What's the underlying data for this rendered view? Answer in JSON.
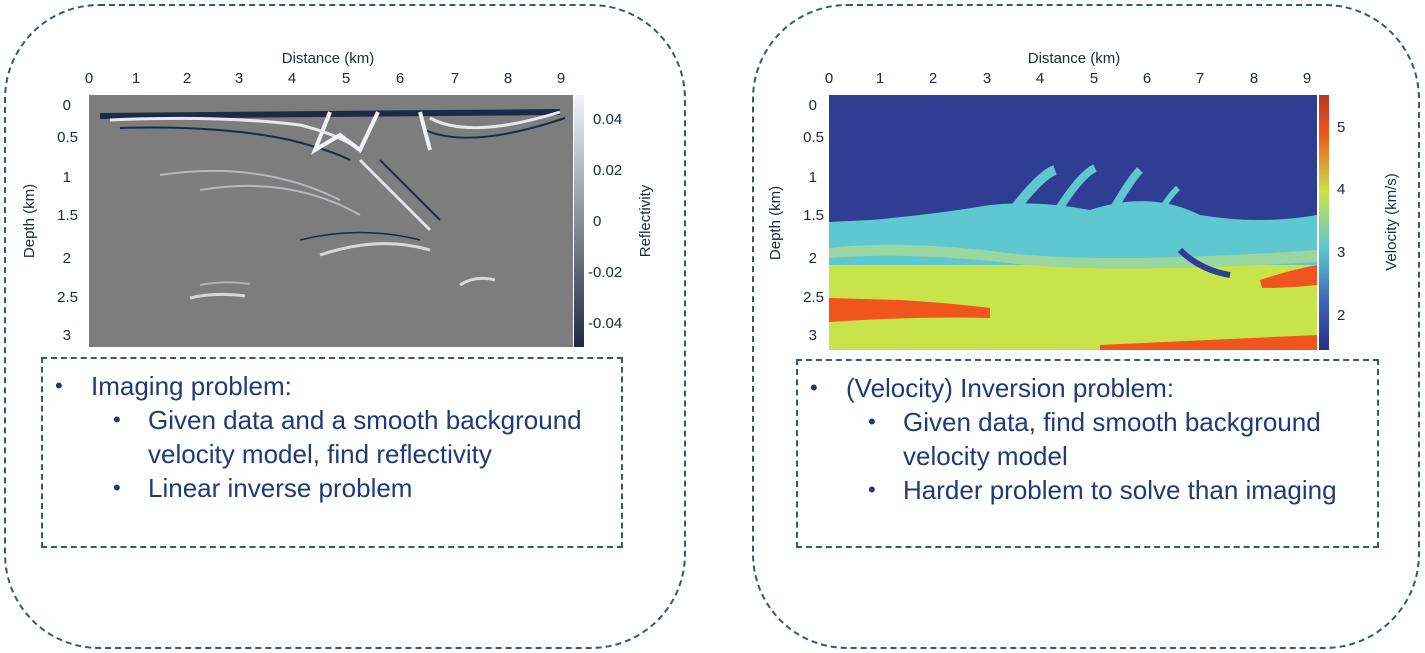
{
  "left": {
    "chart": {
      "title": "Distance (km)",
      "ylabel": "Depth (km)",
      "colorbar_label": "Reflectivity",
      "x_ticks": [
        "0",
        "1",
        "2",
        "3",
        "4",
        "5",
        "6",
        "7",
        "8",
        "9"
      ],
      "y_ticks": [
        "0",
        "0.5",
        "1",
        "1.5",
        "2",
        "2.5",
        "3"
      ],
      "colorbar_ticks": [
        "0.04",
        "0.02",
        "0",
        "-0.02",
        "-0.04"
      ]
    },
    "text": {
      "main": "Imaging problem:",
      "subs": [
        "Given data and a smooth background velocity model, find reflectivity",
        "Linear inverse problem"
      ]
    }
  },
  "right": {
    "chart": {
      "title": "Distance (km)",
      "ylabel": "Depth (km)",
      "colorbar_label": "Velocity (km/s)",
      "x_ticks": [
        "0",
        "1",
        "2",
        "3",
        "4",
        "5",
        "6",
        "7",
        "8",
        "9"
      ],
      "y_ticks": [
        "0",
        "0.5",
        "1",
        "1.5",
        "2",
        "2.5",
        "3"
      ],
      "colorbar_ticks": [
        "5",
        "4",
        "3",
        "2"
      ]
    },
    "text": {
      "main": "(Velocity) Inversion problem:",
      "subs": [
        "Given data, find smooth background velocity model",
        "Harder problem to solve than imaging"
      ]
    }
  },
  "colors": {
    "border": "#3a5578",
    "text": "#1f3a7a",
    "seismic_gray": "#7d7d7d",
    "velocity_low": "#2f3d93",
    "velocity_mid": "#5ec7cf",
    "velocity_high": "#c9e34a",
    "velocity_max": "#f0551e"
  }
}
